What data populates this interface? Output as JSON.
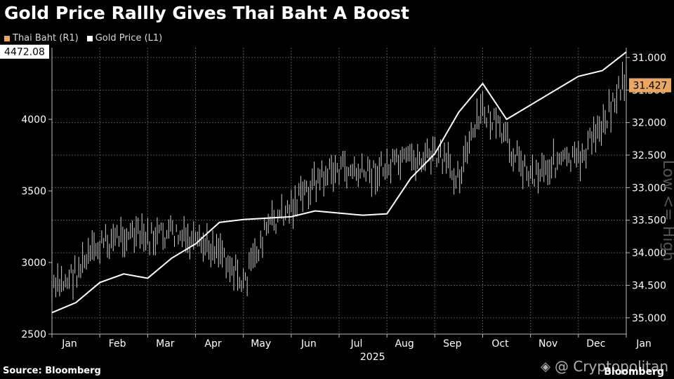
{
  "title": "Gold Price Rallly Gives Thai Baht A Boost",
  "source": "Source: Bloomberg",
  "watermark": "@ Cryptopolitan",
  "brand": "Bloomberg",
  "colors": {
    "baht": "#e8a765",
    "gold": "#ffffff",
    "background": "#000000",
    "grid": "#555555"
  },
  "chart_data": {
    "type": "line",
    "legend_position": "top-left",
    "grid": true,
    "x_labels": [
      "Jan",
      "Feb",
      "Mar",
      "Apr",
      "May",
      "Jun",
      "Jul",
      "Aug",
      "Sep",
      "Oct",
      "Nov",
      "Dec",
      "Jan"
    ],
    "x_year_label": "2025",
    "left_axis": {
      "ticks": [
        "2500",
        "3000",
        "3500",
        "4000"
      ],
      "range": [
        2500,
        4500
      ]
    },
    "right_axis": {
      "ticks": [
        "31.000",
        "31.500",
        "32.000",
        "32.500",
        "33.000",
        "33.500",
        "34.000",
        "34.500",
        "35.000"
      ],
      "range": [
        30.85,
        35.25
      ],
      "inverted": true,
      "side_label": "Low <= High"
    },
    "last_gold_label": "4472.08",
    "last_baht_label": "31.427",
    "series": [
      {
        "name": "Thai Baht (R1)",
        "axis": "right",
        "style": "ohlc-bars",
        "x": [
          0,
          0.5,
          1,
          1.5,
          2,
          2.5,
          3,
          3.5,
          4,
          4.5,
          5,
          5.5,
          6,
          6.5,
          7,
          7.5,
          8,
          8.5,
          9,
          9.5,
          10,
          10.5,
          11,
          11.5,
          12
        ],
        "values": [
          34.6,
          34.3,
          33.9,
          33.7,
          33.8,
          33.7,
          33.9,
          33.9,
          34.5,
          33.6,
          33.3,
          32.9,
          32.7,
          32.8,
          32.7,
          32.6,
          32.5,
          32.8,
          31.8,
          32.3,
          32.8,
          32.6,
          32.6,
          32.0,
          31.3
        ]
      },
      {
        "name": "Gold Price (L1)",
        "axis": "left",
        "style": "line",
        "x": [
          0,
          0.5,
          1,
          1.5,
          2,
          2.5,
          3,
          3.5,
          4,
          4.5,
          5,
          5.5,
          6,
          6.5,
          7,
          7.5,
          8,
          8.5,
          9,
          9.5,
          10,
          10.5,
          11,
          11.5,
          12
        ],
        "values": [
          2650,
          2720,
          2860,
          2920,
          2890,
          3030,
          3130,
          3280,
          3300,
          3310,
          3320,
          3360,
          3345,
          3330,
          3340,
          3590,
          3760,
          4050,
          4250,
          4000,
          4100,
          4200,
          4300,
          4340,
          4470
        ]
      }
    ]
  }
}
